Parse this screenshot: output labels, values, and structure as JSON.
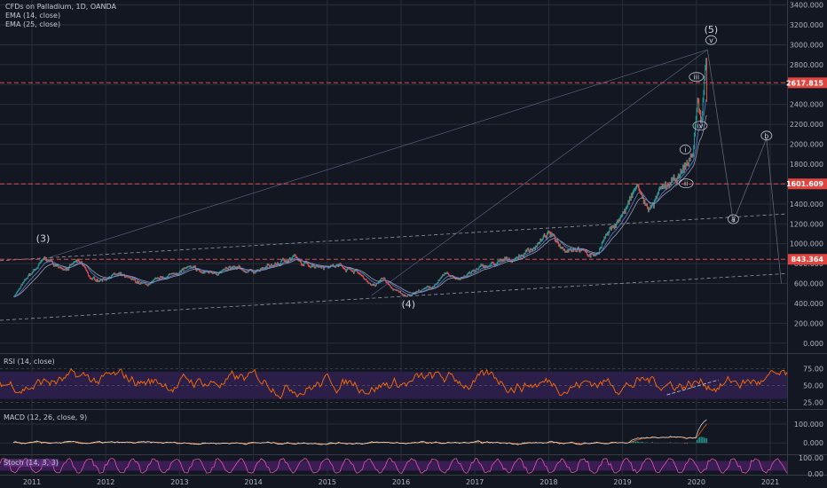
{
  "header": {
    "title": "CFDs on Palladium, 1D, OANDA",
    "indicators": [
      "EMA (14, close)",
      "EMA (25, close)"
    ]
  },
  "colors": {
    "background": "#131722",
    "grid": "#2a2e39",
    "axis_text": "#b2b5be",
    "price": "#26a69a",
    "price_down": "#ef5350",
    "ema14": "#5d7fd6",
    "ema25": "#9aa0ac",
    "rsi": "#ff6d00",
    "rsi_band": "#2b1f4a",
    "macd": "#e8eaed",
    "signal": "#ff6d00",
    "hist_up": "#26a69a",
    "hist_down": "#ef5350",
    "stoch_k": "#ff5ac8",
    "stoch_band": "#3a1d52",
    "level_red": "#e5484d",
    "label_red": "#e0453f",
    "label_text": "#ffffff"
  },
  "chart_data": [
    {
      "type": "line",
      "title": "CFDs on Palladium, 1D, OANDA",
      "series_names": [
        "EMA (14, close)",
        "EMA (25, close)"
      ],
      "x_ticks": [
        "2011",
        "2012",
        "2013",
        "2014",
        "2015",
        "2016",
        "2017",
        "2018",
        "2019",
        "2020",
        "2021"
      ],
      "y_ticks": [
        0,
        200,
        400,
        600,
        800,
        1000,
        1200,
        1400,
        1600,
        1800,
        2000,
        2200,
        2400,
        2600,
        2800,
        3000,
        3200,
        3400
      ],
      "y_tick_labels": [
        "0.000",
        "200.000",
        "400.000",
        "600.000",
        "800.000",
        "1000.000",
        "1200.000",
        "1400.000",
        "1600.000",
        "1800.000",
        "2000.000",
        "2200.000",
        "2400.000",
        "2600.000",
        "2800.000",
        "3000.000",
        "3200.000",
        "3400.000"
      ],
      "ylim": [
        -100,
        3450
      ],
      "price_path": [
        [
          2010.75,
          470
        ],
        [
          2010.95,
          660
        ],
        [
          2011.15,
          820
        ],
        [
          2011.2,
          840
        ],
        [
          2011.35,
          760
        ],
        [
          2011.5,
          770
        ],
        [
          2011.6,
          820
        ],
        [
          2011.7,
          760
        ],
        [
          2011.8,
          630
        ],
        [
          2011.95,
          640
        ],
        [
          2012.1,
          700
        ],
        [
          2012.2,
          680
        ],
        [
          2012.35,
          620
        ],
        [
          2012.55,
          580
        ],
        [
          2012.7,
          620
        ],
        [
          2012.9,
          690
        ],
        [
          2013.1,
          760
        ],
        [
          2013.3,
          700
        ],
        [
          2013.5,
          720
        ],
        [
          2013.7,
          740
        ],
        [
          2013.9,
          720
        ],
        [
          2014.1,
          740
        ],
        [
          2014.35,
          800
        ],
        [
          2014.55,
          880
        ],
        [
          2014.65,
          780
        ],
        [
          2014.8,
          790
        ],
        [
          2015.0,
          790
        ],
        [
          2015.2,
          780
        ],
        [
          2015.4,
          720
        ],
        [
          2015.55,
          620
        ],
        [
          2015.65,
          570
        ],
        [
          2015.75,
          660
        ],
        [
          2015.85,
          560
        ],
        [
          2016.0,
          490
        ],
        [
          2016.05,
          470
        ],
        [
          2016.2,
          520
        ],
        [
          2016.4,
          560
        ],
        [
          2016.6,
          680
        ],
        [
          2016.75,
          650
        ],
        [
          2016.9,
          690
        ],
        [
          2017.1,
          760
        ],
        [
          2017.3,
          800
        ],
        [
          2017.5,
          840
        ],
        [
          2017.65,
          900
        ],
        [
          2017.85,
          1000
        ],
        [
          2018.0,
          1100
        ],
        [
          2018.05,
          1060
        ],
        [
          2018.2,
          960
        ],
        [
          2018.4,
          980
        ],
        [
          2018.55,
          880
        ],
        [
          2018.65,
          900
        ],
        [
          2018.75,
          1060
        ],
        [
          2018.9,
          1200
        ],
        [
          2019.05,
          1350
        ],
        [
          2019.15,
          1500
        ],
        [
          2019.2,
          1580
        ],
        [
          2019.3,
          1380
        ],
        [
          2019.4,
          1360
        ],
        [
          2019.5,
          1500
        ],
        [
          2019.6,
          1560
        ],
        [
          2019.7,
          1600
        ],
        [
          2019.8,
          1700
        ],
        [
          2019.95,
          1900
        ],
        [
          2020.02,
          2450
        ],
        [
          2020.06,
          2200
        ],
        [
          2020.1,
          2550
        ],
        [
          2020.13,
          2850
        ],
        [
          2020.14,
          2400
        ]
      ],
      "levels": [
        {
          "value": 2617.815,
          "label": "2617.815"
        },
        {
          "value": 1601.609,
          "label": "1601.609"
        },
        {
          "value": 843.364,
          "label": "843.364"
        }
      ],
      "wave_labels": [
        {
          "text": "(3)",
          "x": 2011.15,
          "y": 1020
        },
        {
          "text": "(4)",
          "x": 2016.1,
          "y": 360
        },
        {
          "text": "(5)",
          "x": 2020.2,
          "y": 3120
        },
        {
          "text": "v",
          "x": 2020.2,
          "y": 3020,
          "circled": true
        },
        {
          "text": "iii",
          "x": 2020.0,
          "y": 2650,
          "circled": true
        },
        {
          "text": "iv",
          "x": 2020.05,
          "y": 2160,
          "circled": true
        },
        {
          "text": "i",
          "x": 2019.85,
          "y": 1920,
          "circled": true
        },
        {
          "text": "ii",
          "x": 2019.86,
          "y": 1580,
          "circled": true
        },
        {
          "text": "b",
          "x": 2020.95,
          "y": 2060,
          "circled": true
        },
        {
          "text": "a",
          "x": 2020.5,
          "y": 1220,
          "circled": true
        }
      ]
    },
    {
      "type": "line",
      "title": "RSI (14, close)",
      "y_ticks": [
        25,
        50,
        75
      ],
      "y_tick_labels": [
        "25.00",
        "50.00",
        "75.00"
      ],
      "band": [
        30,
        70
      ],
      "ylim": [
        15,
        95
      ],
      "typical_range": [
        28,
        75
      ]
    },
    {
      "type": "line",
      "title": "MACD (12, 26, close, 9)",
      "y_ticks": [
        0,
        100
      ],
      "y_tick_labels": [
        "0.000",
        "100.000"
      ],
      "ylim": [
        -60,
        170
      ]
    },
    {
      "type": "line",
      "title": "Stoch (14, 3, 3)",
      "y_ticks": [
        0,
        100
      ],
      "y_tick_labels": [
        "0.00",
        "100.00"
      ],
      "band": [
        20,
        80
      ],
      "ylim": [
        -5,
        110
      ]
    }
  ]
}
